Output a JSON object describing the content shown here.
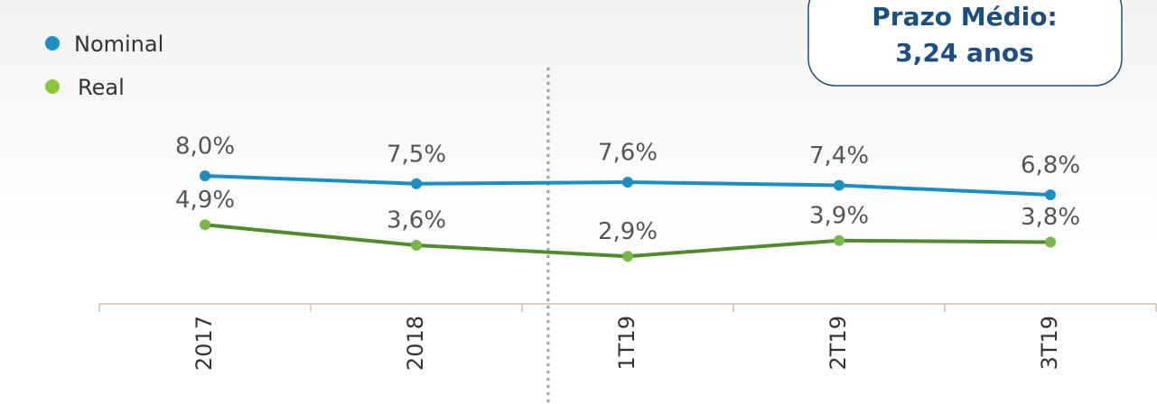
{
  "chart_data": {
    "type": "line",
    "categories": [
      "2017",
      "2018",
      "1T19",
      "2T19",
      "3T19"
    ],
    "series": [
      {
        "name": "Nominal",
        "color": "#1b8fc4",
        "values": [
          8.0,
          7.5,
          7.6,
          7.4,
          6.8
        ],
        "value_labels": [
          "8,0%",
          "7,5%",
          "7,6%",
          "7,4%",
          "6,8%"
        ]
      },
      {
        "name": "Real",
        "color": "#4f8a2f",
        "marker_color": "#7ab648",
        "values": [
          4.9,
          3.6,
          2.9,
          3.9,
          3.8
        ],
        "value_labels": [
          "4,9%",
          "3,6%",
          "2,9%",
          "3,9%",
          "3,8%"
        ]
      }
    ],
    "annotation": [
      "Prazo Médio:",
      "3,24 anos"
    ]
  }
}
